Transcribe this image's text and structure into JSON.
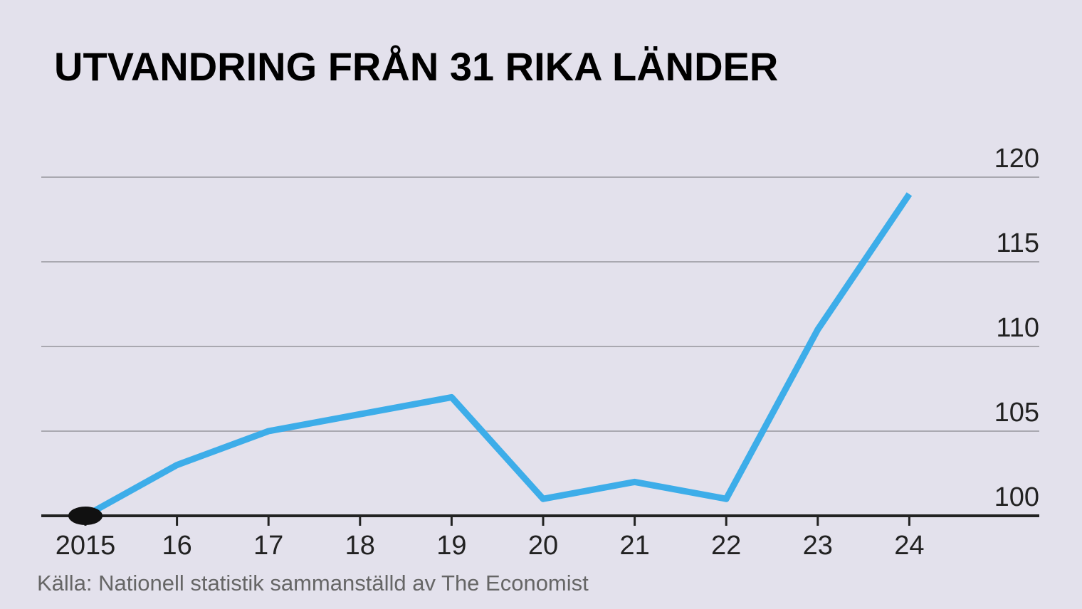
{
  "chart_data": {
    "type": "line",
    "title": "UTVANDRING FRÅN 31 RIKA LÄNDER",
    "source": "Källa: Nationell statistik sammanställd av The Economist",
    "categories": [
      "2015",
      "16",
      "17",
      "18",
      "19",
      "20",
      "21",
      "22",
      "23",
      "24"
    ],
    "values": [
      100,
      103,
      105,
      106,
      107,
      101,
      102,
      101,
      111,
      119
    ],
    "color": "#3dade9",
    "ylim": [
      100,
      120
    ],
    "yticks": [
      100,
      105,
      110,
      115,
      120
    ],
    "grid": true
  }
}
